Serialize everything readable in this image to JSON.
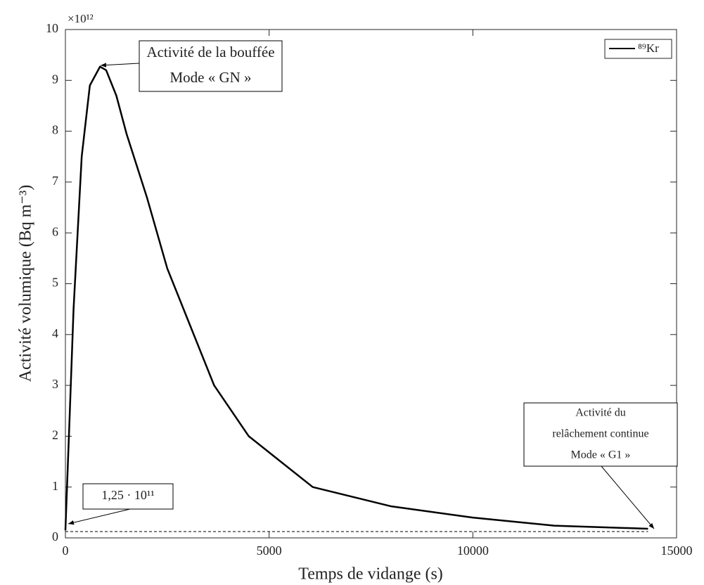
{
  "chart_data": {
    "type": "line",
    "y_label": "Activité volumique (Bq m⁻³)",
    "x_label": "Temps de vidange (s)",
    "y_multiplier": "×10¹²",
    "x": [
      0,
      100,
      200,
      400,
      600,
      850,
      1000,
      1250,
      1500,
      2000,
      2500,
      3000,
      3650,
      4500,
      6070,
      8000,
      10000,
      12000,
      14300
    ],
    "series": [
      {
        "name": "⁸⁹Kr",
        "color": "#000000",
        "values": [
          0.15,
          2.3,
          4.5,
          7.5,
          8.9,
          9.27,
          9.2,
          8.7,
          7.95,
          6.7,
          5.3,
          4.3,
          3.0,
          2.0,
          1.0,
          0.62,
          0.4,
          0.24,
          0.18
        ]
      }
    ],
    "reference_line": {
      "value": 0.125,
      "label": "1,25 · 10¹¹"
    },
    "annotations": [
      {
        "lines": [
          "Activité de la bouffée",
          "Mode « GN »"
        ]
      },
      {
        "lines": [
          "Activité du",
          "relâchement continue",
          "Mode « G1 »"
        ]
      }
    ],
    "xlim": [
      0,
      15000
    ],
    "xticks": [
      0,
      5000,
      10000,
      15000
    ],
    "ylim": [
      0,
      10
    ],
    "yticks": [
      0,
      1,
      2,
      3,
      4,
      5,
      6,
      7,
      8,
      9,
      10
    ],
    "legend": "upper right"
  }
}
